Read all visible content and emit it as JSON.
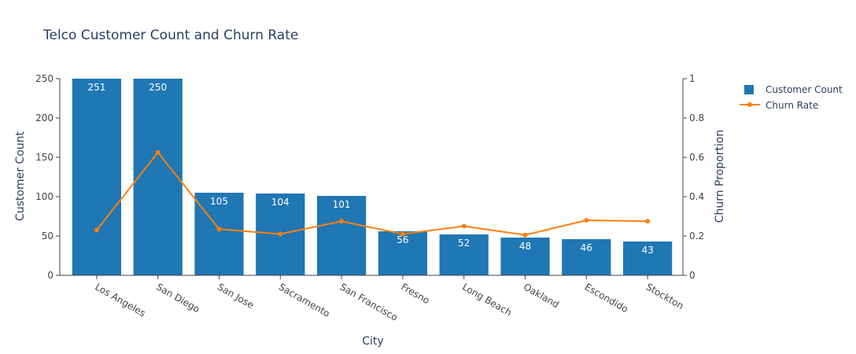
{
  "chart_data": {
    "type": "bar",
    "title": "Telco Customer Count and Churn Rate",
    "xlabel": "City",
    "ylabel": "Customer Count",
    "y2label": "Churn Proportion",
    "categories": [
      "Los Angeles",
      "San Diego",
      "San Jose",
      "Sacramento",
      "San Francisco",
      "Fresno",
      "Long Beach",
      "Oakland",
      "Escondido",
      "Stockton"
    ],
    "series": [
      {
        "name": "Customer Count",
        "type": "bar",
        "axis": "left",
        "color": "#1f77b4",
        "values": [
          251,
          250,
          105,
          104,
          101,
          56,
          52,
          48,
          46,
          43
        ]
      },
      {
        "name": "Churn Rate",
        "type": "line",
        "axis": "right",
        "color": "#ff7f0e",
        "values": [
          0.23,
          0.625,
          0.235,
          0.21,
          0.275,
          0.21,
          0.25,
          0.205,
          0.28,
          0.275
        ]
      }
    ],
    "ylim": [
      0,
      250
    ],
    "yticks": [
      0,
      50,
      100,
      150,
      200,
      250
    ],
    "y2lim": [
      0,
      1
    ],
    "y2ticks": [
      "0",
      "0.2",
      "0.4",
      "0.6",
      "0.8",
      "1"
    ],
    "legend": "top-right",
    "grid": false
  }
}
